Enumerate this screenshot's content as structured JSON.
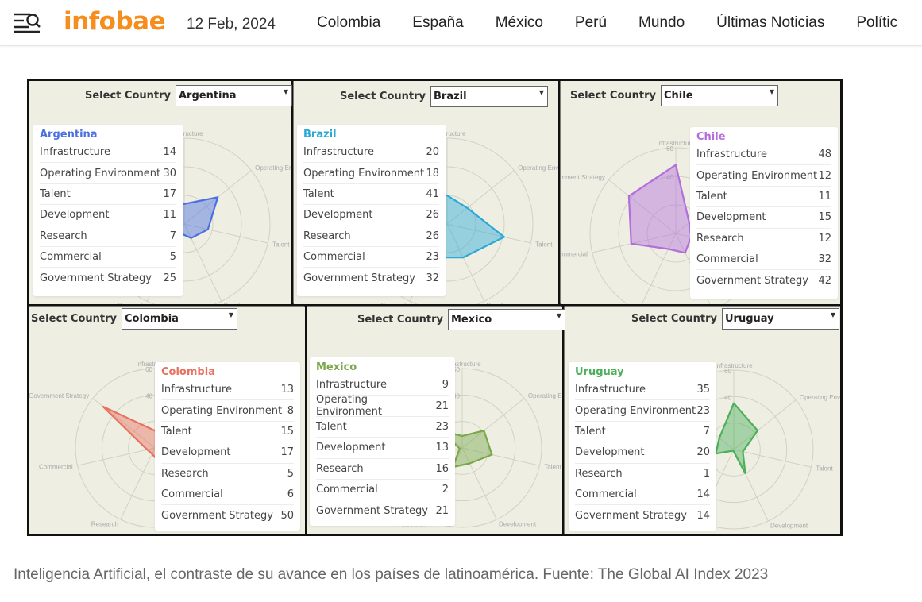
{
  "header": {
    "menu_icon": "menu-search-icon",
    "logo": "infobae",
    "logo_color": "#f68e1e",
    "date": "12 Feb, 2024",
    "nav": [
      "Colombia",
      "España",
      "México",
      "Perú",
      "Mundo",
      "Últimas Noticias",
      "Polític"
    ]
  },
  "figure": {
    "select_label": "Select Country",
    "axes": [
      "Infrastructure",
      "Operating Environment",
      "Talent",
      "Development",
      "Research",
      "Commercial",
      "Government Strategy"
    ],
    "ring_labels": [
      "60",
      "40"
    ],
    "panels": [
      {
        "country": "Argentina",
        "color": "#4b6fe0",
        "values": [
          14,
          30,
          17,
          11,
          7,
          5,
          25
        ]
      },
      {
        "country": "Brazil",
        "color": "#2aa9d6",
        "values": [
          20,
          18,
          41,
          26,
          26,
          23,
          32
        ]
      },
      {
        "country": "Chile",
        "color": "#b26fdb",
        "values": [
          48,
          12,
          11,
          15,
          12,
          32,
          42
        ]
      },
      {
        "country": "Colombia",
        "color": "#e8725f",
        "values": [
          13,
          8,
          15,
          17,
          5,
          6,
          50
        ]
      },
      {
        "country": "Mexico",
        "color": "#7aa84c",
        "values": [
          9,
          21,
          23,
          13,
          16,
          2,
          21
        ]
      },
      {
        "country": "Uruguay",
        "color": "#4caf5a",
        "values": [
          35,
          23,
          7,
          20,
          1,
          14,
          14
        ]
      }
    ]
  },
  "caption": "Inteligencia Artificial, el contraste de su avance en los países de latinoamérica. Fuente: The Global AI Index 2023"
}
